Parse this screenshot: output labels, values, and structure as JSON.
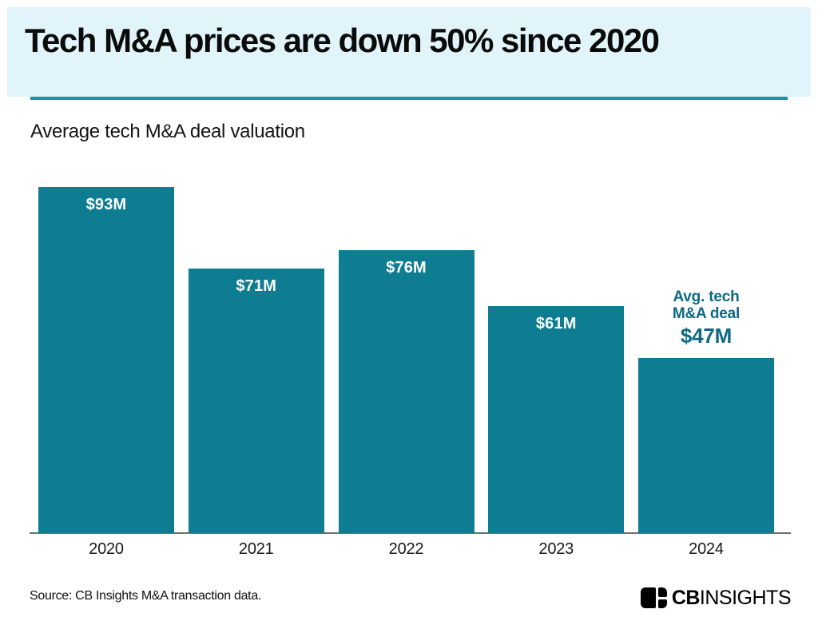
{
  "header": {
    "title": "Tech M&A prices are down 50% since 2020"
  },
  "subtitle": "Average tech M&A deal valuation",
  "chart_data": {
    "type": "bar",
    "title": "Tech M&A prices are down 50% since 2020",
    "subtitle": "Average tech M&A deal valuation",
    "categories": [
      "2020",
      "2021",
      "2022",
      "2023",
      "2024"
    ],
    "values": [
      93,
      71,
      76,
      61,
      47
    ],
    "value_labels": [
      "$93M",
      "$71M",
      "$76M",
      "$61M",
      "$47M"
    ],
    "unit": "million USD",
    "ylim": [
      0,
      100
    ],
    "grid": false,
    "legend": null,
    "annotation": {
      "target": "2024",
      "lines": [
        "Avg. tech",
        "M&A deal"
      ],
      "value": "$47M"
    },
    "colors": {
      "bar": "#0e7d92",
      "value_label": "#ffffff",
      "annotation": "#0d6884",
      "axis_line": "#6e6e6e",
      "header_band": "#e1f4fa",
      "rule": "#1a90aa"
    }
  },
  "footer": {
    "source": "Source: CB Insights M&A transaction data.",
    "logo": {
      "bold": "CB",
      "light": "INSIGHTS"
    }
  }
}
